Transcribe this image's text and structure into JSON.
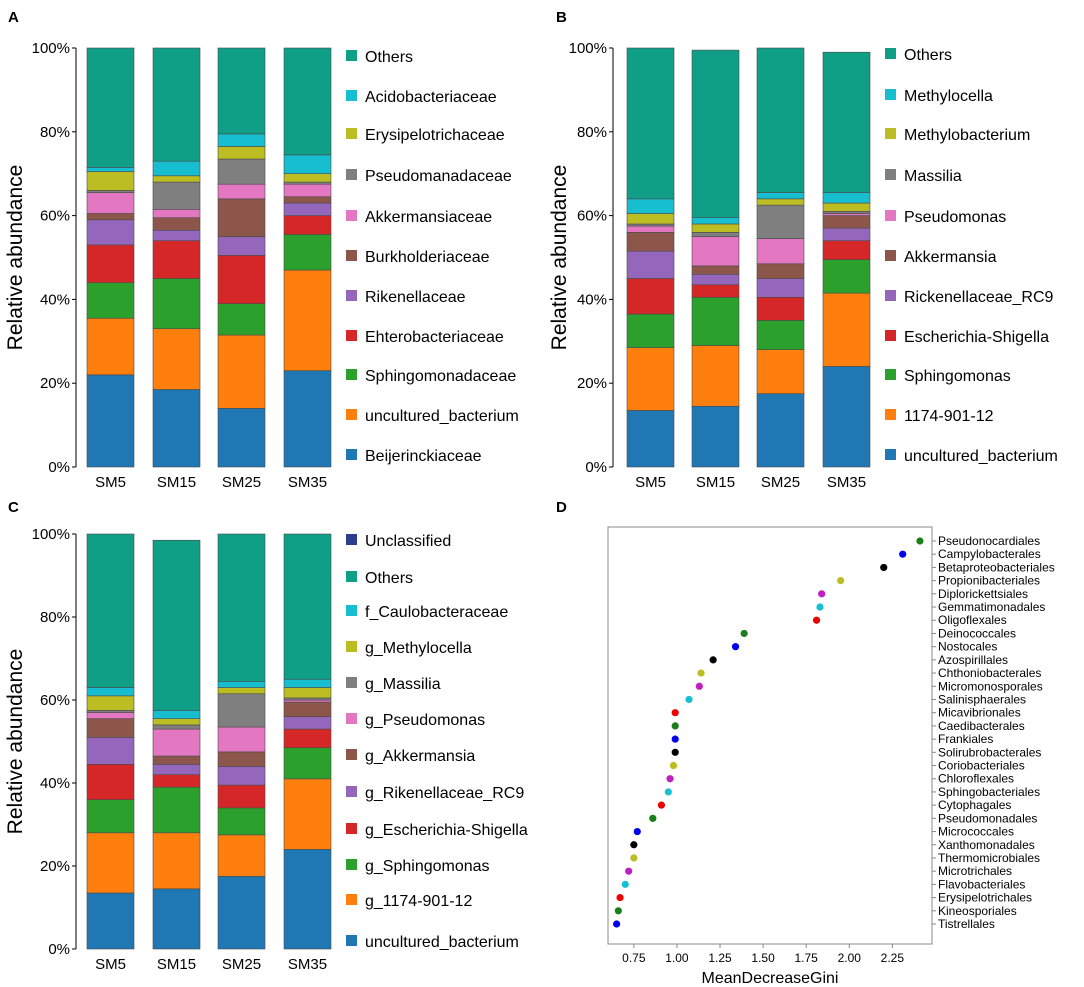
{
  "colors": {
    "Others": "#0f9f86",
    "teal_light": "#17becf",
    "olive": "#bcbd22",
    "gray": "#7f7f7f",
    "pink": "#e377c2",
    "brown": "#8c564b",
    "purple": "#9467bd",
    "red": "#d62728",
    "green": "#2ca02c",
    "orange": "#ff7f0e",
    "blue": "#1f77b4",
    "navy": "#2e3e8e",
    "black": "#000000",
    "dark_green": "#1a7f1a",
    "bright_blue": "#0000ee",
    "bright_red": "#ee0000",
    "magenta": "#c020c0",
    "cyan": "#17c0d0"
  },
  "chart_data": [
    {
      "panel": "A",
      "type": "bar",
      "stacked": true,
      "categories": [
        "SM5",
        "SM15",
        "SM25",
        "SM35"
      ],
      "ylabel": "Relative abundance",
      "yticks": [
        "0%",
        "20%",
        "40%",
        "60%",
        "80%",
        "100%"
      ],
      "ylim": [
        0,
        100
      ],
      "series": [
        {
          "name": "Beijerinckiaceae",
          "color": "blue",
          "values": [
            22,
            18.5,
            14,
            23
          ]
        },
        {
          "name": "uncultured_bacterium",
          "color": "orange",
          "values": [
            13.5,
            14.5,
            17.5,
            24
          ]
        },
        {
          "name": "Sphingomonadaceae",
          "color": "green",
          "values": [
            8.5,
            12,
            7.5,
            8.5
          ]
        },
        {
          "name": "Ehterobacteriaceae",
          "color": "red",
          "values": [
            9,
            9,
            11.5,
            4.5
          ]
        },
        {
          "name": "Rikenellaceae",
          "color": "purple",
          "values": [
            6,
            2.5,
            4.5,
            3
          ]
        },
        {
          "name": "Burkholderiaceae",
          "color": "brown",
          "values": [
            1.5,
            3,
            9,
            1.5
          ]
        },
        {
          "name": "Akkermansiaceae",
          "color": "pink",
          "values": [
            5,
            2,
            3.5,
            3
          ]
        },
        {
          "name": "Pseudomanadaceae",
          "color": "gray",
          "values": [
            0.5,
            6.5,
            6,
            0.5
          ]
        },
        {
          "name": "Erysipelotrichaceae",
          "color": "olive",
          "values": [
            4.5,
            1.5,
            3,
            2
          ]
        },
        {
          "name": "Acidobacteriaceae",
          "color": "teal_light",
          "values": [
            1,
            3.5,
            3,
            4.5
          ]
        },
        {
          "name": "Others",
          "color": "Others",
          "values": [
            28.5,
            27,
            20.5,
            25.5
          ]
        }
      ]
    },
    {
      "panel": "B",
      "type": "bar",
      "stacked": true,
      "categories": [
        "SM5",
        "SM15",
        "SM25",
        "SM35"
      ],
      "ylabel": "Relative abundance",
      "yticks": [
        "0%",
        "20%",
        "40%",
        "60%",
        "80%",
        "100%"
      ],
      "ylim": [
        0,
        100
      ],
      "series": [
        {
          "name": "uncultured_bacterium",
          "color": "blue",
          "values": [
            13.5,
            14.5,
            17.5,
            24
          ]
        },
        {
          "name": "1174-901-12",
          "color": "orange",
          "values": [
            15,
            14.5,
            10.5,
            17.5
          ]
        },
        {
          "name": "Sphingomonas",
          "color": "green",
          "values": [
            8,
            11.5,
            7,
            8
          ]
        },
        {
          "name": "Escherichia-Shigella",
          "color": "red",
          "values": [
            8.5,
            3,
            5.5,
            4.5
          ]
        },
        {
          "name": "Rickenellaceae_RC9",
          "color": "purple",
          "values": [
            6.5,
            2.5,
            4.5,
            3
          ]
        },
        {
          "name": "Akkermansia",
          "color": "brown",
          "values": [
            4.5,
            2,
            3.5,
            3
          ]
        },
        {
          "name": "Pseudomonas",
          "color": "pink",
          "values": [
            1.5,
            7,
            6,
            0.5
          ]
        },
        {
          "name": "Massilia",
          "color": "gray",
          "values": [
            0.5,
            1,
            8,
            0.5
          ]
        },
        {
          "name": "Methylobacterium",
          "color": "olive",
          "values": [
            2.5,
            2,
            1.5,
            2
          ]
        },
        {
          "name": "Methylocella",
          "color": "teal_light",
          "values": [
            3.5,
            1.5,
            1.5,
            2.5
          ]
        },
        {
          "name": "Others",
          "color": "Others",
          "values": [
            36,
            40,
            34.5,
            33.5
          ]
        }
      ]
    },
    {
      "panel": "C",
      "type": "bar",
      "stacked": true,
      "categories": [
        "SM5",
        "SM15",
        "SM25",
        "SM35"
      ],
      "ylabel": "Relative abundance",
      "yticks": [
        "0%",
        "20%",
        "40%",
        "60%",
        "80%",
        "100%"
      ],
      "ylim": [
        0,
        100
      ],
      "series": [
        {
          "name": "uncultured_bacterium",
          "color": "blue",
          "values": [
            13.5,
            14.5,
            17.5,
            24
          ]
        },
        {
          "name": "g_1174-901-12",
          "color": "orange",
          "values": [
            14.5,
            13.5,
            10,
            17
          ]
        },
        {
          "name": "g_Sphingomonas",
          "color": "green",
          "values": [
            8,
            11,
            6.5,
            7.5
          ]
        },
        {
          "name": "g_Escherichia-Shigella",
          "color": "red",
          "values": [
            8.5,
            3,
            5.5,
            4.5
          ]
        },
        {
          "name": "g_Rikenellaceae_RC9",
          "color": "purple",
          "values": [
            6.5,
            2.5,
            4.5,
            3
          ]
        },
        {
          "name": "g_Akkermansia",
          "color": "brown",
          "values": [
            4.5,
            2,
            3.5,
            3.5
          ]
        },
        {
          "name": "g_Pseudomonas",
          "color": "pink",
          "values": [
            1.5,
            6.5,
            6,
            0.5
          ]
        },
        {
          "name": "g_Massilia",
          "color": "gray",
          "values": [
            0.5,
            1,
            8,
            0.5
          ]
        },
        {
          "name": "g_Methylocella",
          "color": "olive",
          "values": [
            3.5,
            1.5,
            1.5,
            2.5
          ]
        },
        {
          "name": "f_Caulobacteraceae",
          "color": "teal_light",
          "values": [
            2,
            2,
            1.5,
            2
          ]
        },
        {
          "name": "Others",
          "color": "Others",
          "values": [
            37,
            41,
            35.5,
            35
          ]
        },
        {
          "name": "Unclassified",
          "color": "navy",
          "values": [
            0,
            0,
            0,
            0
          ]
        }
      ]
    },
    {
      "panel": "D",
      "type": "scatter",
      "xlabel": "MeanDecreaseGini",
      "xlim": [
        0.6,
        2.48
      ],
      "xticks": [
        "0.75",
        "1.00",
        "1.25",
        "1.50",
        "1.75",
        "2.00",
        "2.25"
      ],
      "points": [
        {
          "name": "Pseudonocardiales",
          "x": 2.41,
          "color": "dark_green"
        },
        {
          "name": "Campylobacterales",
          "x": 2.31,
          "color": "bright_blue"
        },
        {
          "name": "Betaproteobacteriales",
          "x": 2.2,
          "color": "black"
        },
        {
          "name": "Propionibacteriales",
          "x": 1.95,
          "color": "olive"
        },
        {
          "name": "Diplorickettsiales",
          "x": 1.84,
          "color": "magenta"
        },
        {
          "name": "Gemmatimonadales",
          "x": 1.83,
          "color": "cyan"
        },
        {
          "name": "Oligoflexales",
          "x": 1.81,
          "color": "bright_red"
        },
        {
          "name": "Deinococcales",
          "x": 1.39,
          "color": "dark_green"
        },
        {
          "name": "Nostocales",
          "x": 1.34,
          "color": "bright_blue"
        },
        {
          "name": "Azospirillales",
          "x": 1.21,
          "color": "black"
        },
        {
          "name": "Chthoniobacterales",
          "x": 1.14,
          "color": "olive"
        },
        {
          "name": "Micromonosporales",
          "x": 1.13,
          "color": "magenta"
        },
        {
          "name": "Salinisphaerales",
          "x": 1.07,
          "color": "cyan"
        },
        {
          "name": "Micavibrionales",
          "x": 0.99,
          "color": "bright_red"
        },
        {
          "name": "Caedibacterales",
          "x": 0.99,
          "color": "dark_green"
        },
        {
          "name": "Frankiales",
          "x": 0.99,
          "color": "bright_blue"
        },
        {
          "name": "Solirubrobacterales",
          "x": 0.99,
          "color": "black"
        },
        {
          "name": "Coriobacteriales",
          "x": 0.98,
          "color": "olive"
        },
        {
          "name": "Chloroflexales",
          "x": 0.96,
          "color": "magenta"
        },
        {
          "name": "Sphingobacteriales",
          "x": 0.95,
          "color": "cyan"
        },
        {
          "name": "Cytophagales",
          "x": 0.91,
          "color": "bright_red"
        },
        {
          "name": "Pseudomonadales",
          "x": 0.86,
          "color": "dark_green"
        },
        {
          "name": "Micrococcales",
          "x": 0.77,
          "color": "bright_blue"
        },
        {
          "name": "Xanthomonadales",
          "x": 0.75,
          "color": "black"
        },
        {
          "name": "Thermomicrobiales",
          "x": 0.75,
          "color": "olive"
        },
        {
          "name": "Microtrichales",
          "x": 0.72,
          "color": "magenta"
        },
        {
          "name": "Flavobacteriales",
          "x": 0.7,
          "color": "cyan"
        },
        {
          "name": "Erysipelotrichales",
          "x": 0.67,
          "color": "bright_red"
        },
        {
          "name": "Kineosporiales",
          "x": 0.66,
          "color": "dark_green"
        },
        {
          "name": "Tistrellales",
          "x": 0.65,
          "color": "bright_blue"
        }
      ]
    }
  ]
}
